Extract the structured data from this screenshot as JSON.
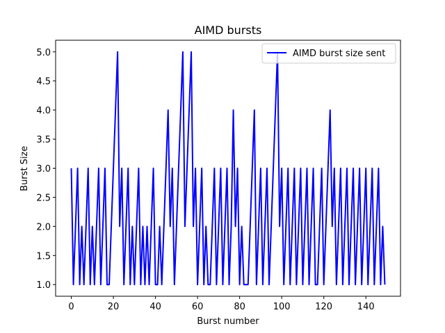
{
  "chart_data": {
    "type": "line",
    "title": "AIMD bursts",
    "xlabel": "Burst number",
    "ylabel": "Burst Size",
    "xlim": [
      -7.45,
      156.45
    ],
    "ylim": [
      0.8,
      5.2
    ],
    "xticks": [
      0,
      20,
      40,
      60,
      80,
      100,
      120,
      140
    ],
    "yticks": [
      1.0,
      1.5,
      2.0,
      2.5,
      3.0,
      3.5,
      4.0,
      4.5,
      5.0
    ],
    "grid": false,
    "legend_position": "top-right",
    "series": [
      {
        "name": "AIMD burst size sent",
        "color": "#0000ff",
        "x": [
          0,
          1,
          2,
          3,
          4,
          5,
          6,
          7,
          8,
          9,
          10,
          11,
          12,
          13,
          14,
          15,
          16,
          17,
          18,
          19,
          20,
          21,
          22,
          23,
          24,
          25,
          26,
          27,
          28,
          29,
          30,
          31,
          32,
          33,
          34,
          35,
          36,
          37,
          38,
          39,
          40,
          41,
          42,
          43,
          44,
          45,
          46,
          47,
          48,
          49,
          50,
          51,
          52,
          53,
          54,
          55,
          56,
          57,
          58,
          59,
          60,
          61,
          62,
          63,
          64,
          65,
          66,
          67,
          68,
          69,
          70,
          71,
          72,
          73,
          74,
          75,
          76,
          77,
          78,
          79,
          80,
          81,
          82,
          83,
          84,
          85,
          86,
          87,
          88,
          89,
          90,
          91,
          92,
          93,
          94,
          95,
          96,
          97,
          98,
          99,
          100,
          101,
          102,
          103,
          104,
          105,
          106,
          107,
          108,
          109,
          110,
          111,
          112,
          113,
          114,
          115,
          116,
          117,
          118,
          119,
          120,
          121,
          122,
          123,
          124,
          125,
          126,
          127,
          128,
          129,
          130,
          131,
          132,
          133,
          134,
          135,
          136,
          137,
          138,
          139,
          140,
          141,
          142,
          143,
          144,
          145,
          146,
          147,
          148,
          149
        ],
        "y": [
          3,
          1,
          2,
          3,
          1,
          2,
          1,
          2,
          3,
          1,
          2,
          1,
          2,
          3,
          1,
          2,
          3,
          1,
          1,
          2,
          3,
          4,
          5,
          2,
          3,
          1,
          2,
          3,
          1,
          2,
          1,
          2,
          3,
          1,
          2,
          1,
          2,
          1,
          2,
          3,
          1,
          1,
          2,
          1,
          2,
          3,
          4,
          2,
          3,
          1,
          2,
          3,
          4,
          5,
          2,
          3,
          4,
          5,
          2,
          3,
          1,
          2,
          3,
          1,
          2,
          1,
          1,
          2,
          3,
          1,
          2,
          3,
          1,
          2,
          3,
          1,
          2,
          4,
          2,
          3,
          1,
          2,
          1,
          1,
          1,
          2,
          3,
          4,
          1,
          2,
          3,
          1,
          2,
          3,
          1,
          2,
          3,
          4,
          5,
          2,
          3,
          1,
          2,
          3,
          1,
          2,
          3,
          1,
          2,
          3,
          1,
          2,
          3,
          1,
          2,
          3,
          1,
          1,
          2,
          3,
          1,
          2,
          3,
          4,
          2,
          3,
          1,
          2,
          3,
          1,
          2,
          3,
          1,
          2,
          3,
          1,
          2,
          3,
          1,
          2,
          3,
          1,
          2,
          3,
          1,
          2,
          3,
          1,
          2,
          1
        ]
      }
    ]
  }
}
